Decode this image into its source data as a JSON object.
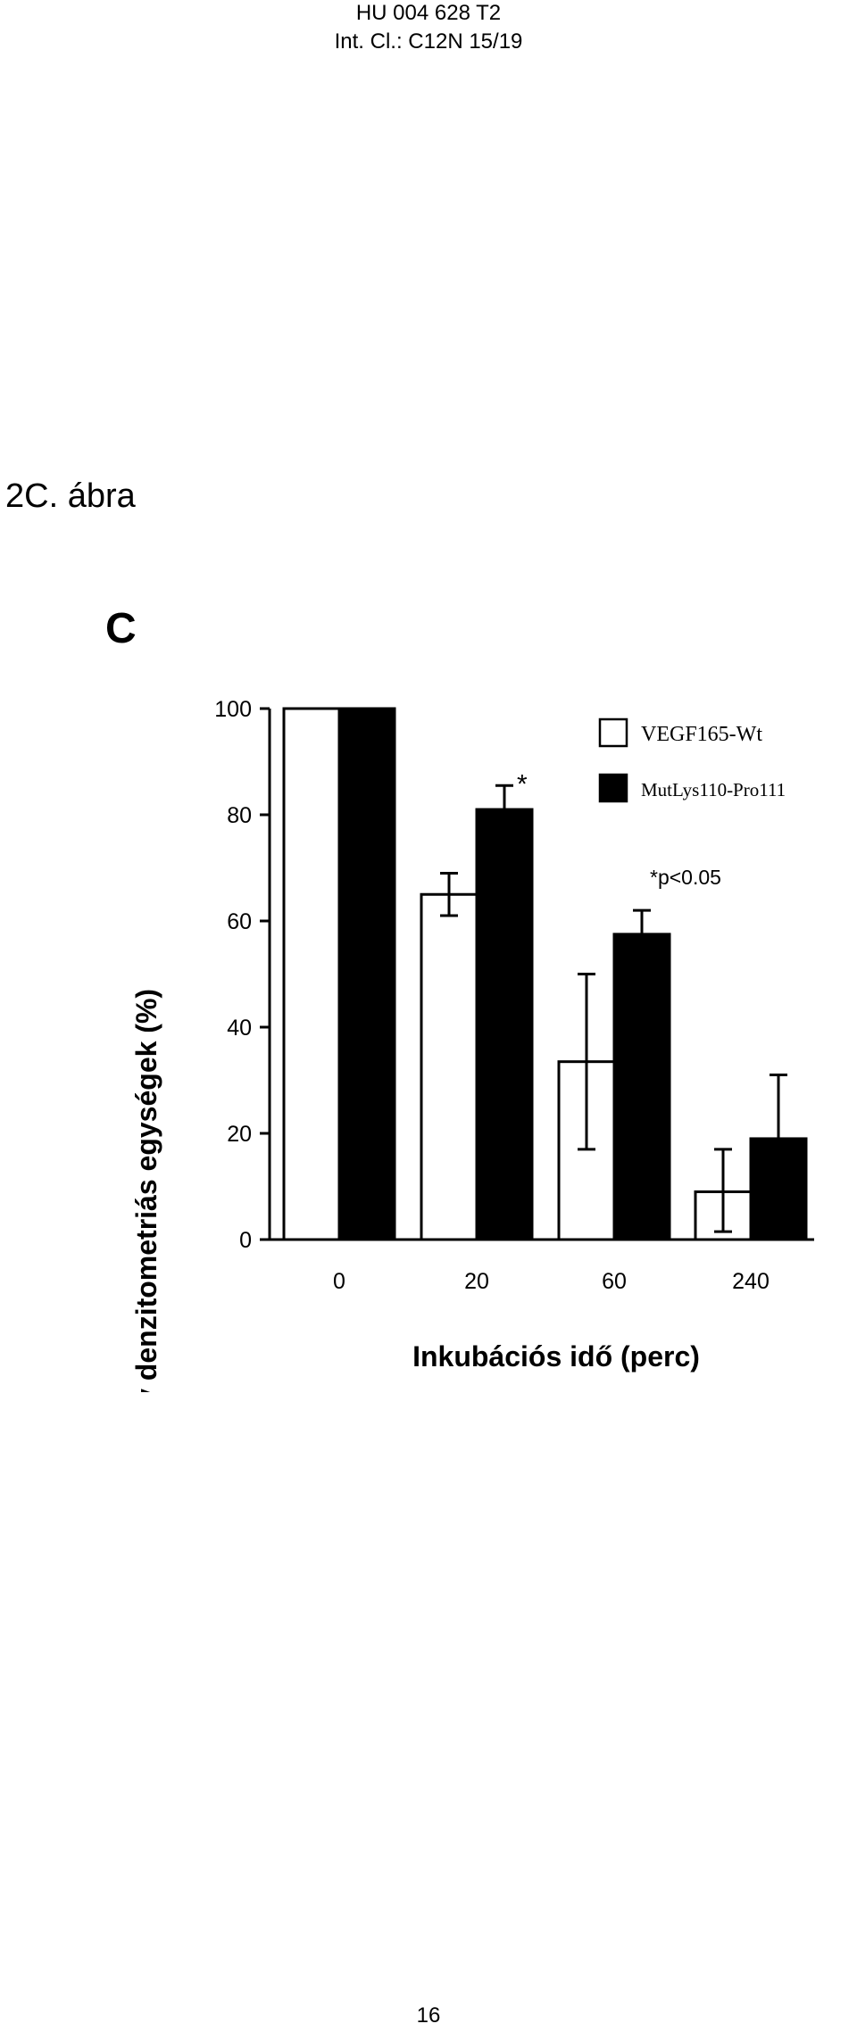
{
  "header": {
    "line1": "HU 004 628 T2",
    "line2": "Int. Cl.: C12N 15/19"
  },
  "figure_label": "2C. ábra",
  "page_number": "16",
  "chart_data": {
    "type": "bar",
    "panel_letter": "C",
    "categories": [
      "0",
      "20",
      "60",
      "240"
    ],
    "series": [
      {
        "name": "VEGF165-Wt",
        "color": "#ffffff",
        "values": [
          100,
          65,
          33.5,
          9
        ],
        "err_low": [
          0,
          4,
          16.5,
          7.5
        ],
        "err_high": [
          0,
          4,
          16.5,
          8
        ]
      },
      {
        "name": "MutLys110-Pro111",
        "color": "#000000",
        "values": [
          100,
          81,
          57.5,
          19
        ],
        "err_low": [
          0,
          0,
          0,
          0
        ],
        "err_high": [
          0,
          4.5,
          4.5,
          12
        ]
      }
    ],
    "xlabel": "Inkubációs idő (perc)",
    "ylabel": "Relatív denzitometriás egységek (%)",
    "ylim": [
      0,
      100
    ],
    "yticks": [
      "0",
      "20",
      "40",
      "60",
      "80",
      "100"
    ],
    "annotations": {
      "star": "*",
      "pvalue": "*p<0.05"
    },
    "legend": "top-right",
    "grid": false
  }
}
